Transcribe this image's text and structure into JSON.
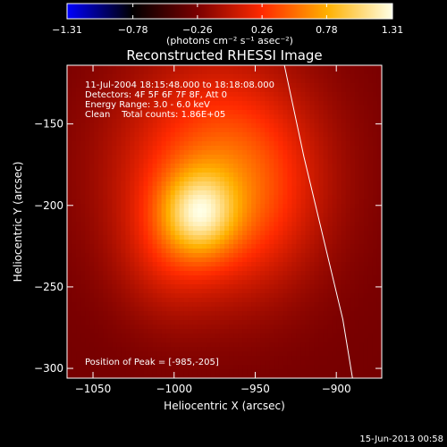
{
  "chart_data": {
    "type": "heatmap",
    "title": "Reconstructed RHESSI Image",
    "xlabel": "Heliocentric X (arcsec)",
    "ylabel": "Heliocentric Y (arcsec)",
    "xlim": [
      -1066,
      -872
    ],
    "ylim": [
      -306,
      -114
    ],
    "x_ticks": [
      {
        "value": -1050,
        "label": "−1050"
      },
      {
        "value": -1000,
        "label": "−1000"
      },
      {
        "value": -950,
        "label": "−950"
      },
      {
        "value": -900,
        "label": "−900"
      }
    ],
    "y_ticks": [
      {
        "value": -150,
        "label": "−150"
      },
      {
        "value": -200,
        "label": "−200"
      },
      {
        "value": -250,
        "label": "−250"
      },
      {
        "value": -300,
        "label": "−300"
      }
    ],
    "colorbar": {
      "min": -1.31,
      "max": 1.31,
      "ticks": [
        {
          "value": -1.31,
          "label": "−1.31"
        },
        {
          "value": -0.78,
          "label": "−0.78"
        },
        {
          "value": -0.26,
          "label": "−0.26"
        },
        {
          "value": 0.26,
          "label": "0.26"
        },
        {
          "value": 0.78,
          "label": "0.78"
        },
        {
          "value": 1.31,
          "label": "1.31"
        }
      ],
      "unit_label": "(photons cm⁻² s⁻¹ asec⁻²)",
      "colors": [
        "#0000ff",
        "#000000",
        "#7a0000",
        "#ff2a00",
        "#ffb000",
        "#ffffe6"
      ]
    },
    "annotations": [
      "11-Jul-2004 18:15:48.000 to 18:18:08.000",
      "Detectors: 4F 5F 6F 7F 8F, Att 0",
      "Energy Range: 3.0 - 6.0 keV",
      "Clean    Total counts: 1.86E+05"
    ],
    "peak_label": "Position of Peak = [-985,-205]",
    "peak": {
      "x": -985,
      "y": -205,
      "value": 1.31
    },
    "limb_curve": [
      [
        -932,
        -114
      ],
      [
        -920,
        -170
      ],
      [
        -908,
        -220
      ],
      [
        -896,
        -270
      ],
      [
        -890,
        -306
      ]
    ],
    "sources": [
      {
        "x": -975,
        "y": -175,
        "sx": 44,
        "sy": 48,
        "amp": 0.55
      },
      {
        "x": -985,
        "y": -205,
        "sx": 16,
        "sy": 18,
        "amp": 0.7
      },
      {
        "x": -955,
        "y": -200,
        "sx": 30,
        "sy": 40,
        "amp": 0.25
      },
      {
        "x": -1005,
        "y": -230,
        "sx": 22,
        "sy": 30,
        "amp": 0.2
      }
    ],
    "grid": false,
    "timestamp": "15-Jun-2013 00:58"
  },
  "colors": {
    "background": "#000000",
    "foreground": "#ffffff"
  }
}
